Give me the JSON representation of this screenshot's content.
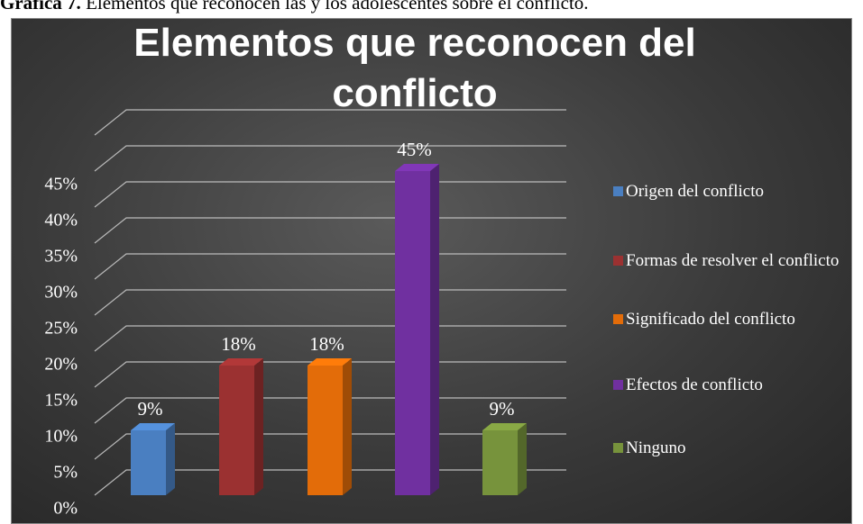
{
  "caption_label": "Gráfica 7.",
  "caption": "Elementos que reconocen las y los adolescentes sobre el conflicto.",
  "chart_data": {
    "type": "bar3d",
    "title": "Elementos que reconocen del conflicto",
    "categories": [
      "Origen del conflicto",
      "Formas de resolver el conflicto",
      "Significado del conflicto",
      "Efectos de conflicto",
      "Ninguno"
    ],
    "values": [
      9,
      18,
      18,
      45,
      9
    ],
    "value_labels": [
      "9%",
      "18%",
      "18%",
      "45%",
      "9%"
    ],
    "colors": [
      "#4a7fc1",
      "#9b3131",
      "#e36c09",
      "#7030a0",
      "#77933c"
    ],
    "ylim": [
      0,
      50
    ],
    "yticks": [
      {
        "value": 0,
        "label": "0%"
      },
      {
        "value": 5,
        "label": "5%"
      },
      {
        "value": 10,
        "label": "10%"
      },
      {
        "value": 15,
        "label": "15%"
      },
      {
        "value": 20,
        "label": "20%"
      },
      {
        "value": 25,
        "label": "25%"
      },
      {
        "value": 30,
        "label": "30%"
      },
      {
        "value": 35,
        "label": "35%"
      },
      {
        "value": 40,
        "label": "40%"
      },
      {
        "value": 45,
        "label": "45%"
      }
    ],
    "grid": true,
    "legend": "right"
  }
}
